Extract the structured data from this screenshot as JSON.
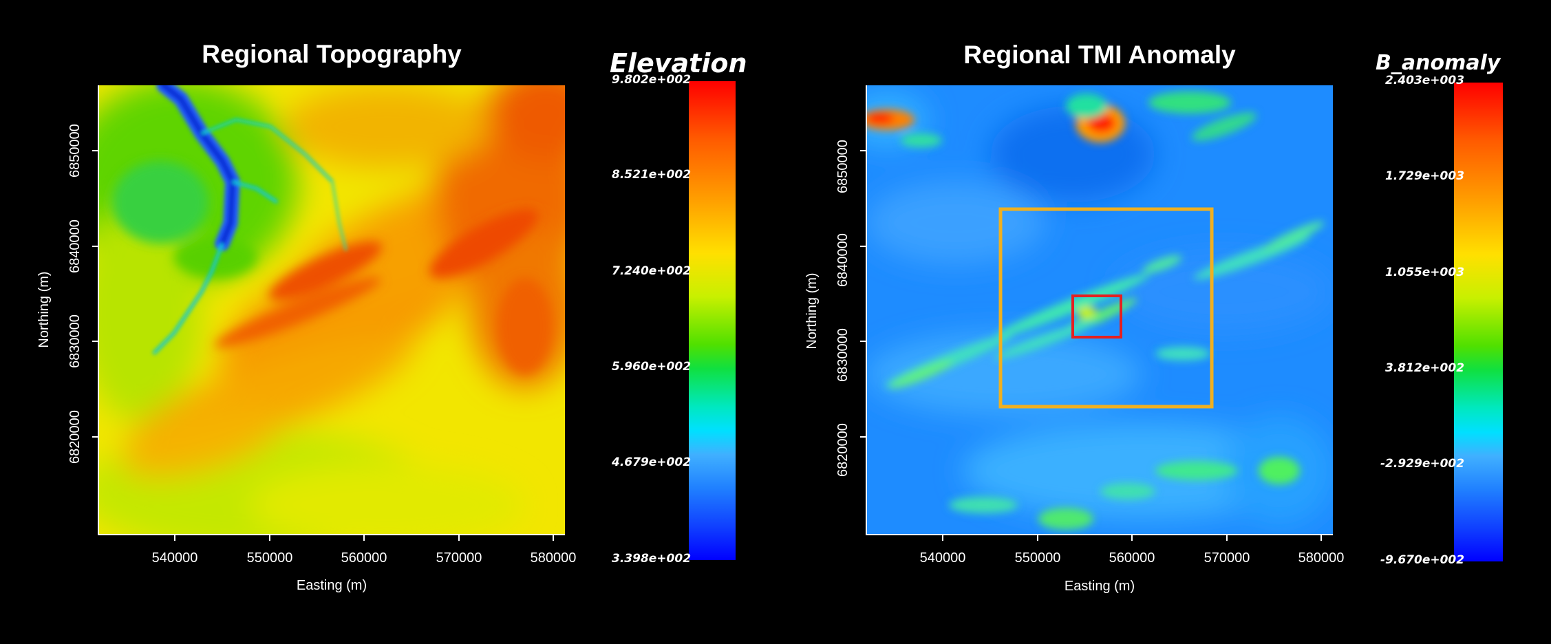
{
  "panels": [
    {
      "id": "topography",
      "title": "Regional Topography",
      "xlabel": "Easting (m)",
      "ylabel": "Northing (m)",
      "xticks": [
        "540000",
        "550000",
        "560000",
        "570000",
        "580000"
      ],
      "yticks": [
        "6850000",
        "6840000",
        "6830000",
        "6820000"
      ],
      "colorbar": {
        "title": "Elevation",
        "labels": [
          "9.802e+002",
          "8.521e+002",
          "7.240e+002",
          "5.960e+002",
          "4.679e+002",
          "3.398e+002"
        ]
      }
    },
    {
      "id": "tmi",
      "title": "Regional TMI Anomaly",
      "xlabel": "Easting (m)",
      "ylabel": "Northing (m)",
      "xticks": [
        "540000",
        "550000",
        "560000",
        "570000",
        "580000"
      ],
      "yticks": [
        "6850000",
        "6840000",
        "6830000",
        "6820000"
      ],
      "colorbar": {
        "title": "B_anomaly",
        "labels": [
          "2.403e+003",
          "1.729e+003",
          "1.055e+003",
          "3.812e+002",
          "-2.929e+002",
          "-9.670e+002"
        ]
      }
    }
  ],
  "overlays": {
    "outer_box_color": "#f0b020",
    "inner_box_color": "#e52020"
  }
}
